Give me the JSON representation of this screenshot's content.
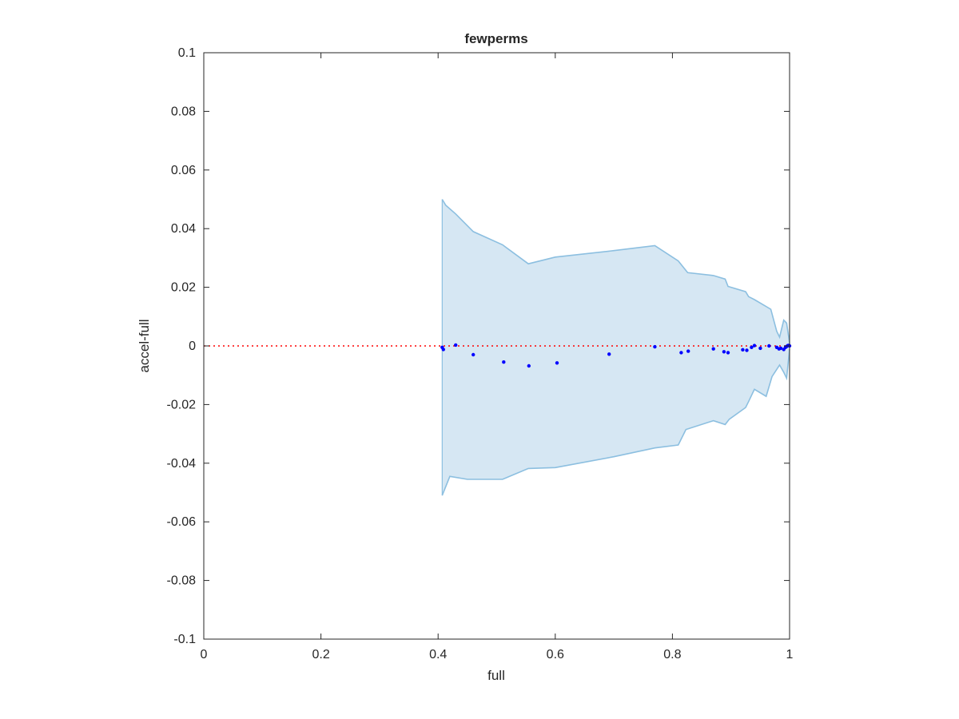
{
  "chart_data": {
    "type": "scatter",
    "title": "fewperms",
    "xlabel": "full",
    "ylabel": "accel-full",
    "xlim": [
      0,
      1
    ],
    "ylim": [
      -0.1,
      0.1
    ],
    "x_ticks": [
      "0",
      "0.2",
      "0.4",
      "0.6",
      "0.8",
      "1"
    ],
    "y_ticks": [
      "0.1",
      "0.08",
      "0.06",
      "0.04",
      "0.02",
      "0",
      "-0.02",
      "-0.04",
      "-0.06",
      "-0.08",
      "-0.1"
    ],
    "grid": false,
    "reference_line": {
      "y": 0,
      "style": "dotted",
      "color": "#ff0000"
    },
    "band": {
      "color": "#d6e7f3",
      "edge_color": "#8cbfe0",
      "upper": [
        [
          0.407,
          0.05
        ],
        [
          0.413,
          0.048
        ],
        [
          0.43,
          0.045
        ],
        [
          0.46,
          0.039
        ],
        [
          0.51,
          0.0345
        ],
        [
          0.554,
          0.028
        ],
        [
          0.6,
          0.0303
        ],
        [
          0.7,
          0.0325
        ],
        [
          0.77,
          0.0342
        ],
        [
          0.81,
          0.029
        ],
        [
          0.826,
          0.025
        ],
        [
          0.87,
          0.024
        ],
        [
          0.89,
          0.0228
        ],
        [
          0.895,
          0.0203
        ],
        [
          0.925,
          0.0185
        ],
        [
          0.93,
          0.0168
        ],
        [
          0.94,
          0.0158
        ],
        [
          0.968,
          0.0125
        ],
        [
          0.978,
          0.005
        ],
        [
          0.983,
          0.003
        ],
        [
          0.99,
          0.0088
        ],
        [
          0.995,
          0.0078
        ],
        [
          1.0,
          0.001
        ]
      ],
      "lower": [
        [
          0.407,
          -0.051
        ],
        [
          0.42,
          -0.0445
        ],
        [
          0.45,
          -0.0455
        ],
        [
          0.51,
          -0.0455
        ],
        [
          0.554,
          -0.0418
        ],
        [
          0.6,
          -0.0415
        ],
        [
          0.7,
          -0.0378
        ],
        [
          0.77,
          -0.0348
        ],
        [
          0.81,
          -0.0338
        ],
        [
          0.823,
          -0.0285
        ],
        [
          0.87,
          -0.0255
        ],
        [
          0.89,
          -0.0268
        ],
        [
          0.897,
          -0.025
        ],
        [
          0.925,
          -0.021
        ],
        [
          0.93,
          -0.019
        ],
        [
          0.94,
          -0.0148
        ],
        [
          0.96,
          -0.0172
        ],
        [
          0.97,
          -0.0105
        ],
        [
          0.983,
          -0.0065
        ],
        [
          0.99,
          -0.009
        ],
        [
          0.995,
          -0.011
        ],
        [
          1.0,
          -0.001
        ]
      ]
    },
    "series": [
      {
        "color": "#0000ff",
        "points": [
          [
            0.407,
            -0.0005
          ],
          [
            0.409,
            -0.0012
          ],
          [
            0.43,
            0.0003
          ],
          [
            0.46,
            -0.003
          ],
          [
            0.512,
            -0.0055
          ],
          [
            0.555,
            -0.0068
          ],
          [
            0.603,
            -0.0058
          ],
          [
            0.692,
            -0.0028
          ],
          [
            0.77,
            -0.0003
          ],
          [
            0.815,
            -0.0023
          ],
          [
            0.827,
            -0.0018
          ],
          [
            0.87,
            -0.001
          ],
          [
            0.888,
            -0.002
          ],
          [
            0.895,
            -0.0023
          ],
          [
            0.92,
            -0.0013
          ],
          [
            0.927,
            -0.0015
          ],
          [
            0.935,
            -0.0005
          ],
          [
            0.94,
            0.0001
          ],
          [
            0.95,
            -0.0008
          ],
          [
            0.965,
            0.0
          ],
          [
            0.978,
            -0.0005
          ],
          [
            0.982,
            -0.001
          ],
          [
            0.985,
            -0.0008
          ],
          [
            0.99,
            -0.0012
          ],
          [
            0.993,
            -0.0005
          ],
          [
            0.995,
            -0.0002
          ],
          [
            0.997,
            0.0001
          ],
          [
            0.999,
            0.0002
          ],
          [
            1.0,
            0.0
          ]
        ]
      }
    ]
  }
}
